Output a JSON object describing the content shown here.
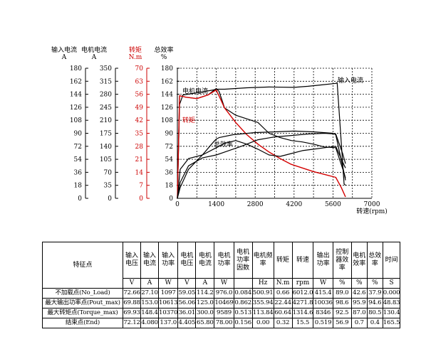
{
  "axes": [
    {
      "title_line1": "输入电流",
      "title_line2": "A",
      "color": "#000000",
      "ticks": [
        "180",
        "162",
        "144",
        "126",
        "108",
        "90",
        "72",
        "54",
        "36",
        "18",
        "0"
      ]
    },
    {
      "title_line1": "电机电流",
      "title_line2": "A",
      "color": "#000000",
      "ticks": [
        "350",
        "315",
        "280",
        "245",
        "210",
        "175",
        "140",
        "105",
        "70",
        "35",
        "0"
      ]
    },
    {
      "title_line1": "转矩",
      "title_line2": "N.m",
      "color": "#cc0000",
      "ticks": [
        "70",
        "63",
        "56",
        "49",
        "42",
        "35",
        "28",
        "21",
        "14",
        "7",
        "0"
      ]
    },
    {
      "title_line1": "总效率",
      "title_line2": "%",
      "color": "#000000",
      "ticks": [
        "180",
        "162",
        "144",
        "126",
        "108",
        "90",
        "72",
        "54",
        "36",
        "18",
        "0"
      ]
    }
  ],
  "chart_data": {
    "type": "line",
    "x_ticks": [
      "0",
      "1400",
      "2800",
      "4200",
      "5600",
      "7000"
    ],
    "xlabel": "转速(rpm)",
    "xlim": [
      0,
      7000
    ],
    "ylim": [
      0,
      180
    ],
    "grid": true,
    "series": [
      {
        "name": "输入电流",
        "color": "#000000",
        "points": [
          [
            0,
            0
          ],
          [
            80,
            130
          ],
          [
            200,
            143
          ],
          [
            700,
            146
          ],
          [
            1300,
            150
          ],
          [
            1400,
            151
          ],
          [
            1700,
            151
          ],
          [
            2500,
            153
          ],
          [
            3300,
            154
          ],
          [
            4200,
            153.5
          ],
          [
            4700,
            155
          ],
          [
            5200,
            157
          ],
          [
            5700,
            159
          ],
          [
            5750,
            160
          ],
          [
            6000,
            20
          ],
          [
            6050,
            18
          ]
        ]
      },
      {
        "name": "电机电流",
        "color": "#000000",
        "points": [
          [
            0,
            0
          ],
          [
            80,
            142
          ],
          [
            300,
            140
          ],
          [
            700,
            138
          ],
          [
            1100,
            143
          ],
          [
            1400,
            152
          ],
          [
            1500,
            148
          ],
          [
            1700,
            125
          ],
          [
            2100,
            115
          ],
          [
            2500,
            110
          ],
          [
            2900,
            105
          ],
          [
            3300,
            90
          ],
          [
            3700,
            84
          ],
          [
            4100,
            80
          ],
          [
            4500,
            78
          ],
          [
            4900,
            75
          ],
          [
            5300,
            71
          ],
          [
            5700,
            70
          ],
          [
            6000,
            35
          ],
          [
            6050,
            25
          ]
        ]
      },
      {
        "name": "转矩",
        "color": "#d40000",
        "points": [
          [
            0,
            0
          ],
          [
            80,
            142
          ],
          [
            300,
            140
          ],
          [
            700,
            138
          ],
          [
            1100,
            143
          ],
          [
            1400,
            150
          ],
          [
            1700,
            125
          ],
          [
            2100,
            105
          ],
          [
            2500,
            88
          ],
          [
            2900,
            75
          ],
          [
            3300,
            64
          ],
          [
            3700,
            55
          ],
          [
            4100,
            47
          ],
          [
            4500,
            42
          ],
          [
            4900,
            37
          ],
          [
            5300,
            33
          ],
          [
            5700,
            29
          ],
          [
            5900,
            15
          ],
          [
            6050,
            2
          ]
        ]
      },
      {
        "name": "总效率",
        "color": "#000000",
        "points": [
          [
            0,
            0
          ],
          [
            100,
            15
          ],
          [
            400,
            40
          ],
          [
            900,
            60
          ],
          [
            1300,
            78
          ],
          [
            1400,
            82
          ],
          [
            1500,
            84
          ],
          [
            2000,
            88
          ],
          [
            2800,
            91
          ],
          [
            3500,
            92
          ],
          [
            4200,
            93
          ],
          [
            4900,
            92
          ],
          [
            5600,
            90
          ],
          [
            5700,
            88
          ],
          [
            6000,
            35
          ],
          [
            6050,
            28
          ]
        ]
      },
      {
        "name": "",
        "color": "#000000",
        "points": [
          [
            0,
            0
          ],
          [
            100,
            22
          ],
          [
            400,
            45
          ],
          [
            900,
            56
          ],
          [
            1400,
            60
          ],
          [
            1700,
            64
          ],
          [
            2300,
            72
          ],
          [
            2900,
            81
          ],
          [
            3500,
            85
          ],
          [
            4100,
            87
          ],
          [
            4700,
            89
          ],
          [
            5300,
            90
          ],
          [
            5700,
            89
          ],
          [
            5950,
            62
          ],
          [
            6050,
            48
          ]
        ]
      },
      {
        "name": "",
        "color": "#000000",
        "points": [
          [
            0,
            0
          ],
          [
            100,
            40
          ],
          [
            400,
            55
          ],
          [
            900,
            60
          ],
          [
            1400,
            70
          ],
          [
            1700,
            76
          ],
          [
            2100,
            80
          ],
          [
            2500,
            75
          ],
          [
            2900,
            68
          ],
          [
            3300,
            60
          ],
          [
            3700,
            58
          ],
          [
            4100,
            62
          ],
          [
            4500,
            66
          ],
          [
            4900,
            68
          ],
          [
            5300,
            70
          ],
          [
            5700,
            72
          ],
          [
            6000,
            46
          ],
          [
            6050,
            42
          ]
        ]
      }
    ],
    "annotations": [
      "电机电流",
      "转矩",
      "总效率",
      "输入电流"
    ]
  },
  "table": {
    "corner_label": "特征点",
    "headers": [
      "输入电压",
      "输入电流",
      "输入功率",
      "电机电压",
      "电机电流",
      "电机功率",
      "电机功率因数",
      "电机频率",
      "转矩",
      "转速",
      "输出功率",
      "控制器效率",
      "电机效率",
      "总效率",
      "时间"
    ],
    "units": [
      "V",
      "A",
      "W",
      "V",
      "A",
      "W",
      "",
      "Hz",
      "N.m",
      "rpm",
      "W",
      "%",
      "%",
      "%",
      "S"
    ],
    "rows": [
      {
        "label": "不加载点(No_Load)",
        "values": [
          "72.66",
          "27.10",
          "1097",
          "59.05",
          "114.2",
          "976.0",
          "0.084",
          "500.91",
          "0.66",
          "6012.0",
          "415.4",
          "89.0",
          "42.6",
          "37.9",
          "0.000"
        ]
      },
      {
        "label": "最大输出功率点(Pout_max)",
        "values": [
          "69.88",
          "153.0",
          "10613",
          "56.06",
          "125.0",
          "10469",
          "0.862",
          "355.94",
          "22.44",
          "4271.8",
          "10036",
          "98.6",
          "95.9",
          "94.6",
          "48.83"
        ]
      },
      {
        "label": "最大转矩点(Torque_max)",
        "values": [
          "69.93",
          "148.4",
          "10370",
          "36.01",
          "300.0",
          "9589",
          "0.513",
          "113.84",
          "60.64",
          "1314.6",
          "8346",
          "92.5",
          "87.0",
          "80.5",
          "130.4"
        ]
      },
      {
        "label": "结束点(End)",
        "values": [
          "72.12",
          "4.080",
          "137.0",
          "4.405",
          "65.80",
          "78.00",
          "0.156",
          "0.00",
          "0.32",
          "15.5",
          "0.519",
          "56.9",
          "0.7",
          "0.4",
          "165.5"
        ]
      }
    ]
  }
}
